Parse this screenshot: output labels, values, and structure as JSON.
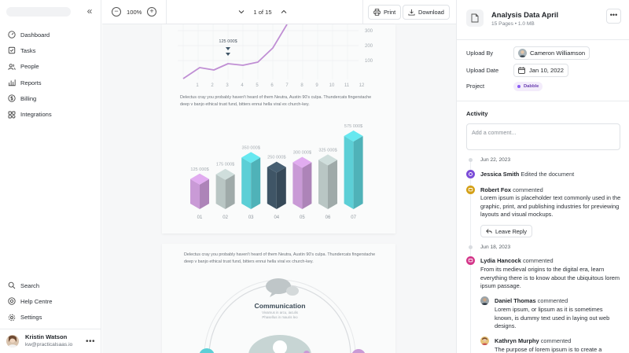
{
  "sidebar": {
    "nav": [
      {
        "label": "Dashboard",
        "icon": "dashboard-icon"
      },
      {
        "label": "Tasks",
        "icon": "tasks-icon"
      },
      {
        "label": "People",
        "icon": "people-icon"
      },
      {
        "label": "Reports",
        "icon": "reports-icon"
      },
      {
        "label": "Billing",
        "icon": "billing-icon"
      },
      {
        "label": "Integrations",
        "icon": "integrations-icon"
      }
    ],
    "bottom": [
      {
        "label": "Search",
        "icon": "search-icon"
      },
      {
        "label": "Help Centre",
        "icon": "help-icon"
      },
      {
        "label": "Settings",
        "icon": "gear-icon"
      }
    ],
    "user": {
      "name": "Kristin Watson",
      "email": "kw@practicalsaas.io"
    }
  },
  "toolbar": {
    "zoom": "100%",
    "page_indicator": "1 of 15",
    "print_label": "Print",
    "download_label": "Download"
  },
  "document": {
    "paragraph1": "Delectus cray you probably haven't heard of them Neutra, Austin 90's culpa. Thundercats fingerstache deep v banjo ethical trust fund, bitters ennui hella viral ex church-key.",
    "paragraph2": "Delectus cray you probably haven't heard of them Neutra, Austin 90's culpa. Thundercats fingerstache deep v banjo ethical trust fund, bitters ennui hella viral ex church-key.",
    "communication": {
      "title": "Communication",
      "subtitle": "Vivamus in arcu, iaculis Phasellus in mauris leo"
    }
  },
  "chart_data": [
    {
      "type": "line",
      "x": [
        1,
        2,
        3,
        4,
        5,
        6,
        7,
        8,
        9,
        10,
        11,
        12
      ],
      "y_axis_ticks": [
        100,
        200,
        300
      ],
      "x_tick_labels": [
        "1",
        "2",
        "3",
        "4",
        "5",
        "6",
        "7",
        "8",
        "9",
        "10",
        "11",
        "12"
      ],
      "annotation": {
        "label": "125 000$",
        "x": 3
      },
      "grid": true,
      "color": "#c08fd4"
    },
    {
      "type": "bar",
      "categories": [
        "01",
        "02",
        "03",
        "04",
        "05",
        "06",
        "07"
      ],
      "value_labels": [
        "125 000$",
        "175 000$",
        "350 000$",
        "250 000$",
        "300 000$",
        "325 000$",
        "575 000$"
      ],
      "values": [
        125000,
        175000,
        350000,
        250000,
        300000,
        325000,
        575000
      ],
      "colors": [
        "#c99ad6",
        "#b9c6c4",
        "#5ccfd6",
        "#3f5566",
        "#c99ad6",
        "#b9c6c4",
        "#5ccfd6"
      ]
    }
  ],
  "panel": {
    "title": "Analysis Data April",
    "meta": "15 Pages  •  1.0 MB",
    "upload_by_label": "Upload By",
    "upload_by_value": "Cameron Williamson",
    "upload_date_label": "Upload Date",
    "upload_date_value": "Jan 10, 2022",
    "project_label": "Project",
    "project_value": "Dabble",
    "activity_title": "Activity",
    "comment_placeholder": "Add a comment...",
    "dates": [
      "Jun 22, 2023",
      "Jun 18, 2023"
    ],
    "activities": [
      {
        "name": "Jessica Smith",
        "action": "Edited the document"
      },
      {
        "name": "Robert Fox",
        "action": "commented",
        "body": "Lorem ipsum is placeholder text commonly used in the graphic, print, and publishing industries for previewing layouts and visual mockups."
      },
      {
        "name": "Lydia Hancock",
        "action": "commented",
        "body": "From its medieval origins to the digital era, learn everything there is to know about the ubiquitous lorem ipsum passage."
      }
    ],
    "leave_reply": "Leave Reply",
    "replies": [
      {
        "name": "Daniel Thomas",
        "action": "commented",
        "body": "Lorem ipsum, or lipsum as it is sometimes known, is dummy text used in laying out web designs."
      },
      {
        "name": "Kathryn Murphy",
        "action": "commented",
        "body": "The purpose of lorem ipsum is to create a"
      }
    ]
  }
}
